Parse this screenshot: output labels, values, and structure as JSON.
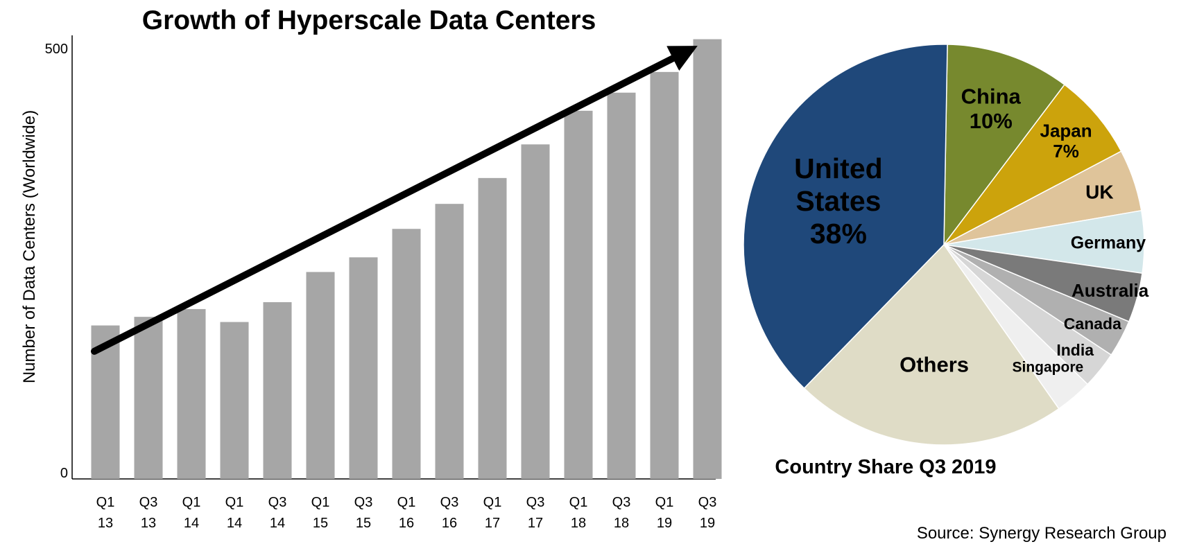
{
  "chart_data": [
    {
      "type": "bar",
      "title": "Growth of Hyperscale Data Centers",
      "ylabel": "Number of Data Centers (Worldwide)",
      "xlabel": "",
      "ylim": [
        0,
        500
      ],
      "yticks": [
        "0",
        "500"
      ],
      "grid": false,
      "categories": [
        [
          "Q1",
          "13"
        ],
        [
          "Q3",
          "13"
        ],
        [
          "Q1",
          "14"
        ],
        [
          "Q1",
          "14"
        ],
        [
          "Q3",
          "14"
        ],
        [
          "Q1",
          "15"
        ],
        [
          "Q3",
          "15"
        ],
        [
          "Q1",
          "16"
        ],
        [
          "Q3",
          "16"
        ],
        [
          "Q1",
          "17"
        ],
        [
          "Q3",
          "17"
        ],
        [
          "Q1",
          "18"
        ],
        [
          "Q3",
          "18"
        ],
        [
          "Q1",
          "19"
        ],
        [
          "Q3",
          "19"
        ]
      ],
      "values": [
        178,
        188,
        197,
        182,
        205,
        240,
        257,
        290,
        319,
        349,
        388,
        427,
        448,
        472,
        510
      ],
      "bar_color": "#a6a6a6",
      "trend_arrow": {
        "from_index": 0,
        "to_index": 14,
        "from_value": 148,
        "to_value": 495,
        "color": "#000000"
      }
    },
    {
      "type": "pie",
      "title": "Country Share Q3 2019",
      "slices": [
        {
          "name": "China",
          "value": 10,
          "color": "#77892e",
          "label_lines": [
            "China",
            "10%"
          ],
          "font": 31
        },
        {
          "name": "Japan",
          "value": 7,
          "color": "#cca30c",
          "label_lines": [
            "Japan",
            "7%"
          ],
          "font": 26
        },
        {
          "name": "UK",
          "value": 5,
          "color": "#dfc49a",
          "label_lines": [
            "UK"
          ],
          "font": 28
        },
        {
          "name": "Germany",
          "value": 5,
          "color": "#d3e7ea",
          "label_lines": [
            "Germany"
          ],
          "font": 25
        },
        {
          "name": "Australia",
          "value": 4,
          "color": "#7a7a7a",
          "label_lines": [
            "Australia"
          ],
          "font": 26
        },
        {
          "name": "Canada",
          "value": 3,
          "color": "#b0b0b0",
          "label_lines": [
            "Canada"
          ],
          "font": 23
        },
        {
          "name": "India",
          "value": 3,
          "color": "#d6d6d6",
          "label_lines": [
            "India"
          ],
          "font": 23
        },
        {
          "name": "Singapore",
          "value": 3,
          "color": "#efefef",
          "label_lines": [
            "Singapore"
          ],
          "font": 21
        },
        {
          "name": "Others",
          "value": 22,
          "color": "#dfdcc6",
          "label_lines": [
            "Others"
          ],
          "font": 31
        },
        {
          "name": "United States",
          "value": 38,
          "color": "#1f487a",
          "label_lines": [
            "United",
            "States",
            "38%"
          ],
          "font": 41,
          "text_color": "#ffffff"
        }
      ]
    }
  ],
  "source": "Source: Synergy Research Group"
}
